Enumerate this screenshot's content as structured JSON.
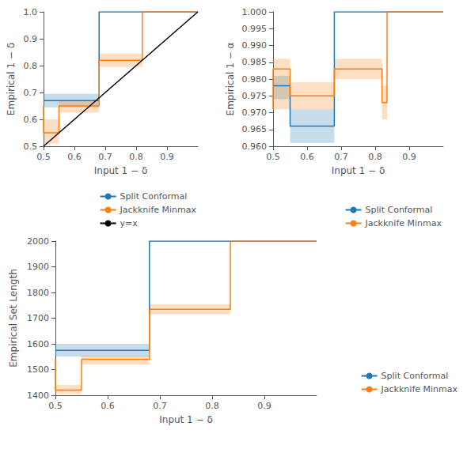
{
  "chart_data": [
    {
      "type": "line",
      "xlabel": "Input 1 − δ",
      "ylabel": "Empirical 1 − δ",
      "xlim": [
        0.5,
        1.0
      ],
      "ylim": [
        0.5,
        1.0
      ],
      "xticks": [
        0.5,
        0.6,
        0.7,
        0.8,
        0.9
      ],
      "yticks": [
        0.5,
        0.6,
        0.7,
        0.8,
        0.9,
        {
          "value": 1.0,
          "label": "1.0"
        }
      ],
      "grid": false,
      "legend": "lower right",
      "series": [
        {
          "name": "Split Conformal",
          "color": "#1f77b4",
          "x": [
            0.5,
            0.68,
            0.68,
            1.0
          ],
          "values": [
            0.67,
            0.67,
            1.0,
            1.0
          ],
          "lower": [
            0.645,
            0.645,
            1.0,
            1.0
          ],
          "upper": [
            0.695,
            0.695,
            1.0,
            1.0
          ]
        },
        {
          "name": "Jackknife Minmax",
          "color": "#ff7f0e",
          "x": [
            0.5,
            0.5,
            0.55,
            0.55,
            0.68,
            0.68,
            0.82,
            0.82,
            1.0
          ],
          "values": [
            0.65,
            0.55,
            0.55,
            0.65,
            0.65,
            0.82,
            0.82,
            1.0,
            1.0
          ],
          "lower": [
            0.63,
            0.51,
            0.51,
            0.625,
            0.625,
            0.795,
            0.795,
            1.0,
            1.0
          ],
          "upper": [
            0.66,
            0.6,
            0.6,
            0.67,
            0.67,
            0.845,
            0.845,
            1.0,
            1.0
          ]
        },
        {
          "name": "y=x",
          "color": "#000000",
          "x": [
            0.5,
            1.0
          ],
          "values": [
            0.5,
            1.0
          ]
        }
      ]
    },
    {
      "type": "line",
      "xlabel": "Input 1 − δ",
      "ylabel": "Empirical 1 − α",
      "xlim": [
        0.5,
        1.0
      ],
      "ylim": [
        0.96,
        1.0
      ],
      "xticks": [
        0.5,
        0.6,
        0.7,
        0.8,
        0.9
      ],
      "yticks": [
        {
          "value": 0.96,
          "label": "0.960"
        },
        {
          "value": 0.965,
          "label": "0.965"
        },
        {
          "value": 0.97,
          "label": "0.970"
        },
        {
          "value": 0.975,
          "label": "0.975"
        },
        {
          "value": 0.98,
          "label": "0.980"
        },
        {
          "value": 0.985,
          "label": "0.985"
        },
        {
          "value": 0.99,
          "label": "0.990"
        },
        {
          "value": 0.995,
          "label": "0.995"
        },
        {
          "value": 1.0,
          "label": "1.000"
        }
      ],
      "grid": false,
      "legend": "lower right",
      "series": [
        {
          "name": "Split Conformal",
          "color": "#1f77b4",
          "x": [
            0.5,
            0.55,
            0.55,
            0.68,
            0.68,
            1.0
          ],
          "values": [
            0.978,
            0.978,
            0.966,
            0.966,
            1.0,
            1.0
          ],
          "lower": [
            0.974,
            0.974,
            0.961,
            0.961,
            1.0,
            1.0
          ],
          "upper": [
            0.981,
            0.981,
            0.971,
            0.971,
            1.0,
            1.0
          ]
        },
        {
          "name": "Jackknife Minmax",
          "color": "#ff7f0e",
          "x": [
            0.5,
            0.5,
            0.55,
            0.55,
            0.68,
            0.68,
            0.82,
            0.82,
            0.835,
            0.835,
            1.0
          ],
          "values": [
            0.971,
            0.983,
            0.983,
            0.975,
            0.975,
            0.983,
            0.983,
            0.973,
            0.973,
            1.0,
            1.0
          ],
          "lower": [
            0.967,
            0.971,
            0.971,
            0.971,
            0.971,
            0.98,
            0.98,
            0.968,
            0.968,
            1.0,
            1.0
          ],
          "upper": [
            0.975,
            0.986,
            0.986,
            0.979,
            0.979,
            0.986,
            0.986,
            0.978,
            0.978,
            1.0,
            1.0
          ]
        }
      ]
    },
    {
      "type": "line",
      "xlabel": "Input 1 − δ",
      "ylabel": "Empirical Set Length",
      "xlim": [
        0.5,
        1.0
      ],
      "ylim": [
        1400,
        2000
      ],
      "xticks": [
        0.5,
        0.6,
        0.7,
        0.8,
        0.9
      ],
      "yticks": [
        1400,
        1500,
        1600,
        1700,
        1800,
        1900,
        2000
      ],
      "grid": false,
      "legend": "lower right",
      "series": [
        {
          "name": "Split Conformal",
          "color": "#1f77b4",
          "x": [
            0.5,
            0.68,
            0.68,
            1.0
          ],
          "values": [
            1575,
            1575,
            2000,
            2000
          ],
          "lower": [
            1550,
            1550,
            2000,
            2000
          ],
          "upper": [
            1600,
            1600,
            2000,
            2000
          ]
        },
        {
          "name": "Jackknife Minmax",
          "color": "#ff7f0e",
          "x": [
            0.5,
            0.5,
            0.55,
            0.55,
            0.68,
            0.68,
            0.835,
            0.835,
            1.0
          ],
          "values": [
            1540,
            1420,
            1420,
            1540,
            1540,
            1735,
            1735,
            2000,
            2000
          ],
          "lower": [
            1520,
            1405,
            1405,
            1520,
            1520,
            1715,
            1715,
            2000,
            2000
          ],
          "upper": [
            1555,
            1440,
            1440,
            1555,
            1555,
            1755,
            1755,
            2000,
            2000
          ]
        }
      ]
    }
  ]
}
